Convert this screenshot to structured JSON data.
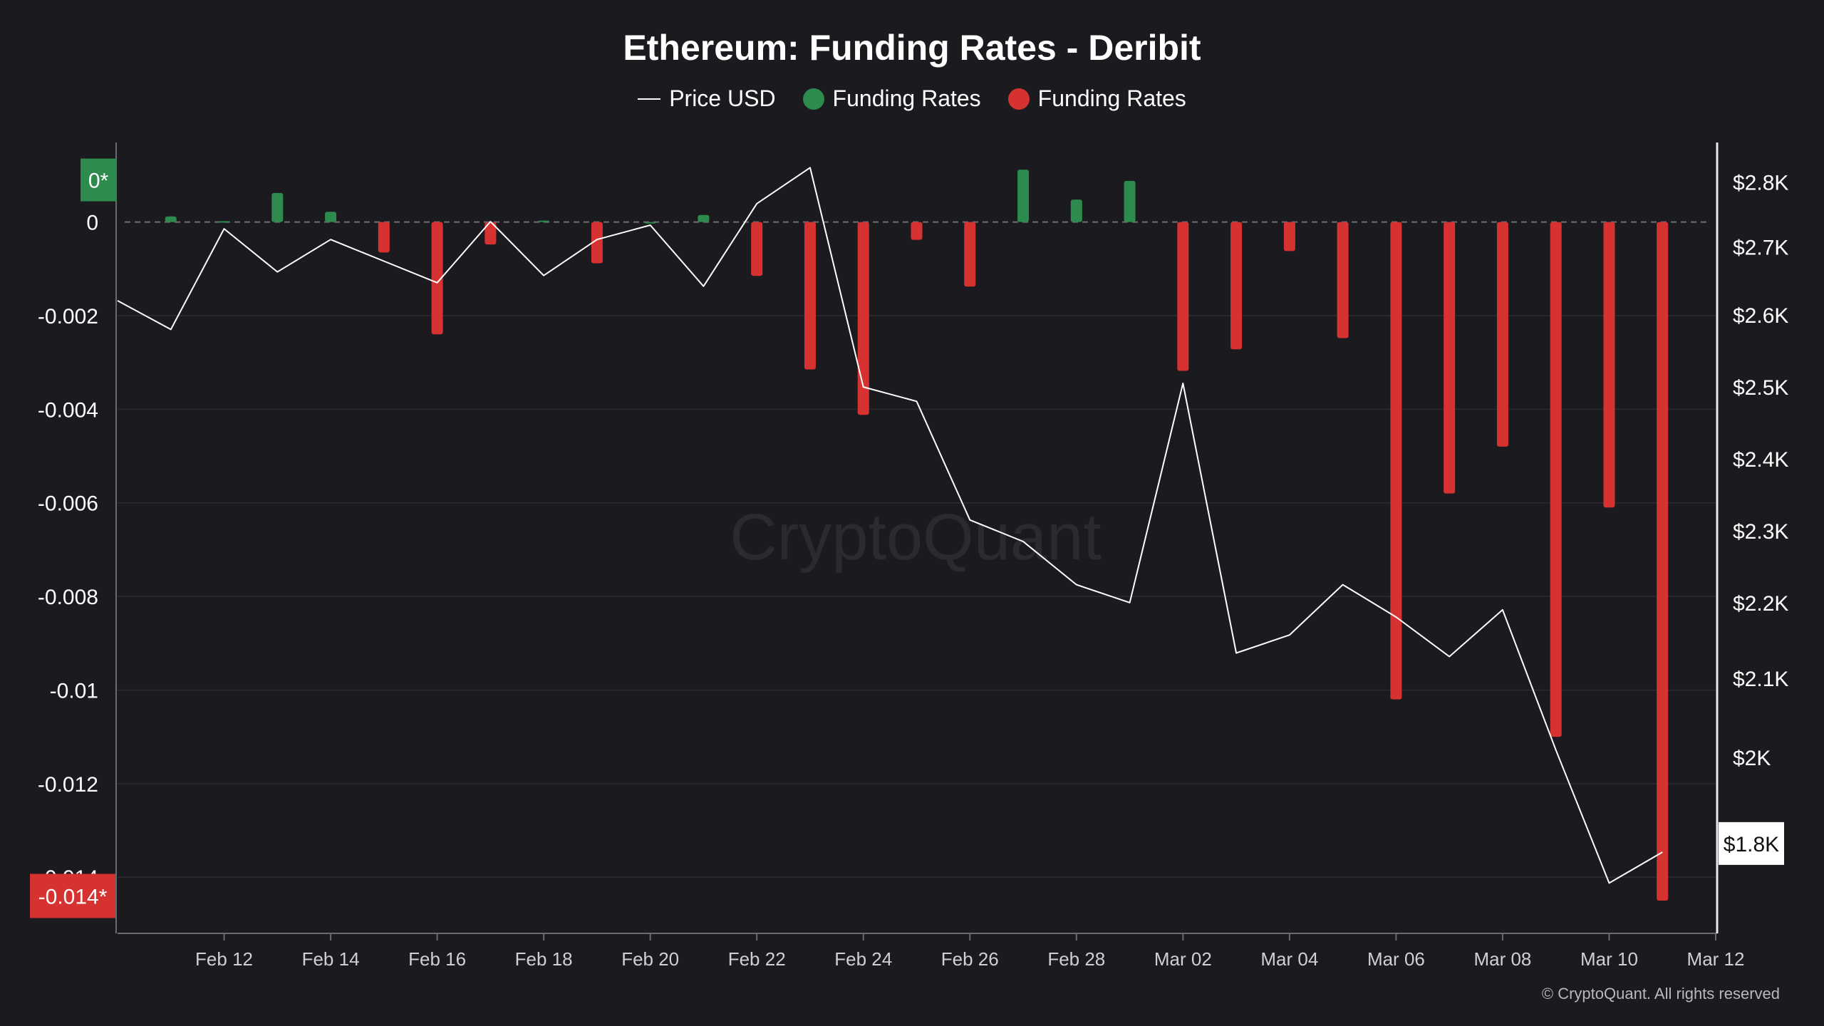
{
  "chart_data": {
    "type": "bar",
    "title": "Ethereum: Funding Rates - Deribit",
    "legend": [
      {
        "label": "Price USD",
        "kind": "line",
        "color": "#ffffff"
      },
      {
        "label": "Funding Rates",
        "kind": "dot",
        "color": "#2e8b4e"
      },
      {
        "label": "Funding Rates",
        "kind": "dot",
        "color": "#d63232"
      }
    ],
    "legend_position": "top-center",
    "x_ticks": [
      "Feb 12",
      "Feb 14",
      "Feb 16",
      "Feb 18",
      "Feb 20",
      "Feb 22",
      "Feb 24",
      "Feb 26",
      "Feb 28",
      "Mar 02",
      "Mar 04",
      "Mar 06",
      "Mar 08",
      "Mar 10",
      "Mar 12"
    ],
    "left_axis": {
      "ticks": [
        {
          "label": "0",
          "value": 0
        },
        {
          "label": "-0.002",
          "value": -0.002
        },
        {
          "label": "-0.004",
          "value": -0.004
        },
        {
          "label": "-0.006",
          "value": -0.006
        },
        {
          "label": "-0.008",
          "value": -0.008
        },
        {
          "label": "-0.01",
          "value": -0.01
        },
        {
          "label": "-0.012",
          "value": -0.012
        },
        {
          "label": "-0.014",
          "value": -0.014
        }
      ],
      "range": [
        -0.0152,
        0.0017
      ],
      "badge_top": {
        "label": "0*",
        "value": 0.0009,
        "color": "#2e8b4e"
      },
      "badge_bottom": {
        "label": "-0.014*",
        "value": -0.0144,
        "color": "#d63232"
      }
    },
    "right_axis": {
      "ticks": [
        {
          "label": "$2.8K",
          "value": 2800
        },
        {
          "label": "$2.7K",
          "value": 2710
        },
        {
          "label": "$2.6K",
          "value": 2615
        },
        {
          "label": "$2.5K",
          "value": 2515
        },
        {
          "label": "$2.4K",
          "value": 2415
        },
        {
          "label": "$2.3K",
          "value": 2315
        },
        {
          "label": "$2.2K",
          "value": 2215
        },
        {
          "label": "$2.1K",
          "value": 2110
        },
        {
          "label": "$2K",
          "value": 2000
        }
      ],
      "range": [
        1755,
        2855
      ],
      "badge": {
        "label": "$1.8K",
        "value": 1880
      }
    },
    "x_range": [
      "2025-02-10",
      "2025-03-12"
    ],
    "funding_rates": {
      "dates": [
        "2025-02-11",
        "2025-02-12",
        "2025-02-13",
        "2025-02-14",
        "2025-02-15",
        "2025-02-16",
        "2025-02-17",
        "2025-02-18",
        "2025-02-19",
        "2025-02-20",
        "2025-02-21",
        "2025-02-22",
        "2025-02-23",
        "2025-02-24",
        "2025-02-25",
        "2025-02-26",
        "2025-02-27",
        "2025-02-28",
        "2025-03-01",
        "2025-03-02",
        "2025-03-03",
        "2025-03-04",
        "2025-03-05",
        "2025-03-06",
        "2025-03-07",
        "2025-03-08",
        "2025-03-09",
        "2025-03-10",
        "2025-03-11"
      ],
      "values": [
        0.00012,
        2e-05,
        0.00062,
        0.00022,
        -0.00065,
        -0.0024,
        -0.00048,
        3e-05,
        -0.00088,
        0.0,
        0.00015,
        -0.00115,
        -0.00315,
        -0.00412,
        -0.00038,
        -0.00138,
        0.00112,
        0.00048,
        0.00088,
        -0.00318,
        -0.00272,
        -0.00062,
        -0.00248,
        -0.0102,
        -0.0058,
        -0.0048,
        -0.011,
        -0.0061,
        -0.0145
      ]
    },
    "price_usd": {
      "dates": [
        "2025-02-10",
        "2025-02-11",
        "2025-02-12",
        "2025-02-13",
        "2025-02-14",
        "2025-02-15",
        "2025-02-16",
        "2025-02-17",
        "2025-02-18",
        "2025-02-19",
        "2025-02-20",
        "2025-02-21",
        "2025-02-22",
        "2025-02-23",
        "2025-02-24",
        "2025-02-25",
        "2025-02-26",
        "2025-02-27",
        "2025-02-28",
        "2025-03-01",
        "2025-03-02",
        "2025-03-03",
        "2025-03-04",
        "2025-03-05",
        "2025-03-06",
        "2025-03-07",
        "2025-03-08",
        "2025-03-09",
        "2025-03-10",
        "2025-03-11"
      ],
      "values": [
        2635,
        2595,
        2735,
        2675,
        2720,
        2690,
        2660,
        2745,
        2670,
        2720,
        2740,
        2655,
        2770,
        2820,
        2515,
        2495,
        2330,
        2300,
        2240,
        2215,
        2520,
        2145,
        2170,
        2240,
        2195,
        2140,
        2205,
        2010,
        1825,
        1868
      ]
    },
    "colors": {
      "positive": "#2e8b4e",
      "negative": "#d63232",
      "price_line": "#ffffff",
      "gridline": "#2c2c31",
      "axis": "#6a6a70"
    },
    "watermark": "CryptoQuant",
    "copyright": "© CryptoQuant. All rights reserved"
  }
}
